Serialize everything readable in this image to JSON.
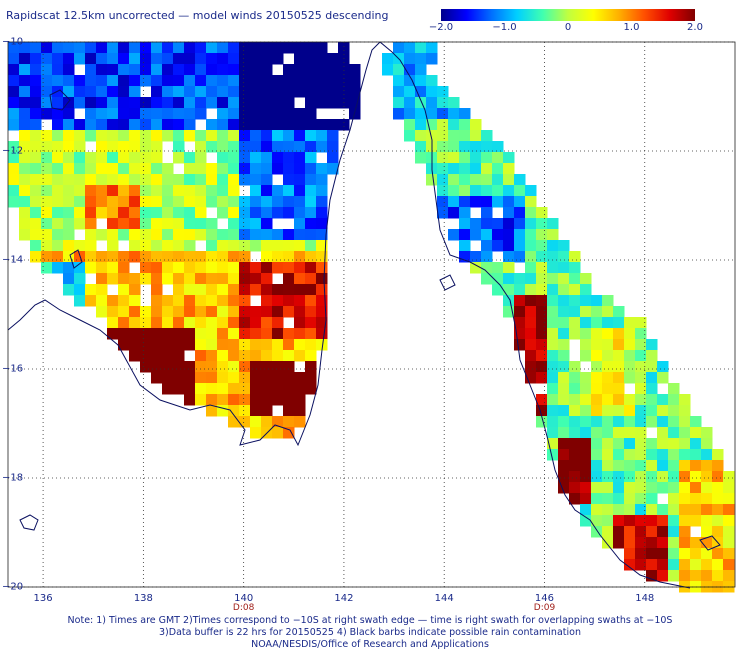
{
  "title": "Rapidscat 12.5km uncorrected — model winds 20150525 descending",
  "colorbar": {
    "ticks": [
      "−2.0",
      "−1.0",
      "0",
      "1.0",
      "2.0"
    ],
    "tick_values": [
      -2.0,
      -1.0,
      0,
      1.0,
      2.0
    ],
    "range": [
      -2.0,
      2.0
    ],
    "colors": [
      "#00008b",
      "#0000ff",
      "#0070ff",
      "#00d0ff",
      "#40ffb0",
      "#c0ff40",
      "#ffff00",
      "#ffb000",
      "#ff5000",
      "#e00000",
      "#800000"
    ]
  },
  "axes": {
    "lon_labels": [
      "136",
      "138",
      "140",
      "142",
      "144",
      "146",
      "148"
    ],
    "lon_values": [
      136,
      138,
      140,
      142,
      144,
      146,
      148
    ],
    "lat_labels": [
      "−10",
      "−12",
      "−14",
      "−16",
      "−18",
      "−20"
    ],
    "lat_values": [
      -10,
      -12,
      -14,
      -16,
      -18,
      -20
    ],
    "lon_range": [
      135.3,
      149.8
    ],
    "lat_range": [
      -20.0,
      -10.0
    ],
    "grid": "dotted"
  },
  "swath_times": [
    {
      "label": "D:08",
      "lon": 140.0
    },
    {
      "label": "D:09",
      "lon": 146.0
    }
  ],
  "notes": [
    "Note: 1) Times are GMT 2)Times correspond to −10S at right swath edge — time is right swath for overlapping swaths at −10S",
    "3)Data buffer is 22 hrs for 20150525 4) Black barbs indicate possible rain contamination",
    "NOAA/NESDIS/Office of Research and Applications"
  ],
  "colors": {
    "text": "#1a2a8a",
    "coastline": "#0a1060",
    "grid": "#303030",
    "time_label": "#a0201a"
  }
}
